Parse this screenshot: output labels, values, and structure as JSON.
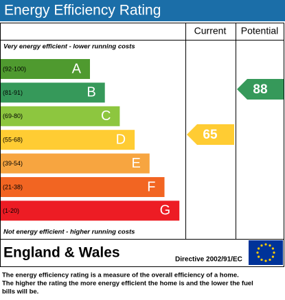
{
  "header": {
    "title": "Energy Efficiency Rating"
  },
  "columns": [
    "Current",
    "Potential"
  ],
  "top_note": "Very energy efficient - lower running costs",
  "bands": [
    {
      "range": "(92-100)",
      "letter": "A",
      "color": "#4f9a2f"
    },
    {
      "range": "(81-91)",
      "letter": "B",
      "color": "#36995a"
    },
    {
      "range": "(69-80)",
      "letter": "C",
      "color": "#8dc63f"
    },
    {
      "range": "(55-68)",
      "letter": "D",
      "color": "#ffcc33"
    },
    {
      "range": "(39-54)",
      "letter": "E",
      "color": "#f7a540"
    },
    {
      "range": "(21-38)",
      "letter": "F",
      "color": "#f26522"
    },
    {
      "range": "(1-20)",
      "letter": "G",
      "color": "#ed1c24"
    }
  ],
  "bottom_note": "Not energy efficient - higher running costs",
  "current": {
    "value": 65,
    "color": "#ffcc33"
  },
  "potential": {
    "value": 88,
    "color": "#36995a"
  },
  "footer": {
    "region": "England & Wales",
    "directive": "Directive 2002/91/EC"
  },
  "description": [
    "The energy efficiency rating is a measure of the overall efficiency of a home.",
    "The higher the rating the more energy efficient the home is and the lower the fuel",
    "bills will be."
  ]
}
